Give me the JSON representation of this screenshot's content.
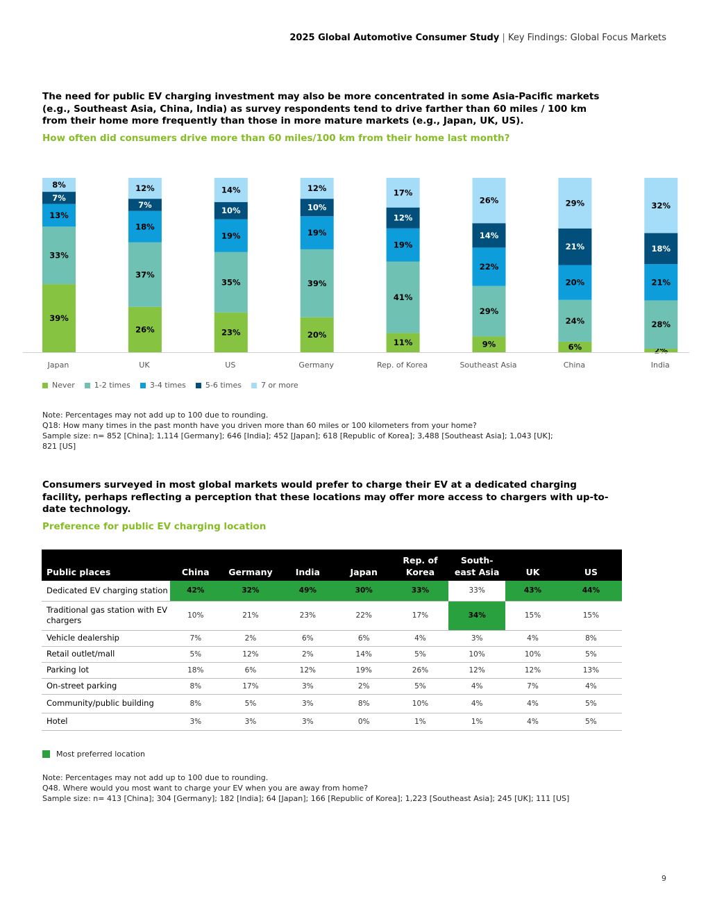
{
  "header": {
    "title": "2025 Global Automotive Consumer Study",
    "separator": "|",
    "subtitle": "Key Findings: Global Focus Markets"
  },
  "section1": {
    "title": "The need for public EV charging investment may also be more concentrated in some Asia-Pacific markets (e.g., Southeast Asia, China, India) as survey respondents tend to drive farther than 60 miles / 100 km from their home more frequently than those in more mature markets (e.g., Japan, UK, US).",
    "question": "How often did consumers drive more than 60 miles/100 km from their home last month?"
  },
  "chart_data": {
    "type": "bar",
    "stacked": true,
    "title": "How often did consumers drive more than 60 miles/100 km from their home last month?",
    "categories": [
      "Japan",
      "UK",
      "US",
      "Germany",
      "Rep. of Korea",
      "Southeast Asia",
      "China",
      "India"
    ],
    "series": [
      {
        "name": "Never",
        "color": "#86c341",
        "values": [
          39,
          26,
          23,
          20,
          11,
          9,
          6,
          2
        ]
      },
      {
        "name": "1-2 times",
        "color": "#6fc2b3",
        "values": [
          33,
          37,
          35,
          39,
          41,
          29,
          24,
          28
        ]
      },
      {
        "name": "3-4 times",
        "color": "#0d9ddb",
        "values": [
          13,
          18,
          19,
          19,
          19,
          22,
          20,
          21
        ]
      },
      {
        "name": "5-6 times",
        "color": "#024f7c",
        "values": [
          7,
          7,
          10,
          10,
          12,
          14,
          21,
          18
        ]
      },
      {
        "name": "7 or more",
        "color": "#a5dcf7",
        "values": [
          8,
          12,
          14,
          12,
          17,
          26,
          29,
          32
        ]
      }
    ],
    "value_suffix": "%",
    "legend_position": "bottom-left"
  },
  "note1": {
    "line1": "Note: Percentages may not add up to 100 due to rounding.",
    "line2": "Q18: How many times in the past month have you driven more than 60 miles or 100 kilometers from your home?",
    "line3": "Sample size: n= 852 [China]; 1,114 [Germany]; 646 [India]; 452 [Japan]; 618 [Republic of Korea]; 3,488 [Southeast Asia]; 1,043 [UK];",
    "line4": "821 [US]"
  },
  "section2": {
    "title": "Consumers surveyed in most global markets would prefer to charge their EV at a dedicated charging facility, perhaps reflecting a perception that these locations may offer more access to chargers with up-to-date technology.",
    "subtitle": "Preference for public EV charging location"
  },
  "table": {
    "corner_label": "Public places",
    "columns": [
      "China",
      "Germany",
      "India",
      "Japan",
      "Rep. of",
      "South-",
      "UK",
      "US"
    ],
    "columns_line2": [
      "",
      "",
      "",
      "",
      "Korea",
      "east Asia",
      "",
      ""
    ],
    "rows": [
      {
        "label": "Dedicated EV charging station",
        "values": [
          "42%",
          "32%",
          "49%",
          "30%",
          "33%",
          "33%",
          "43%",
          "44%"
        ],
        "highlight": [
          true,
          true,
          true,
          true,
          true,
          false,
          true,
          true
        ]
      },
      {
        "label": "Traditional gas station with EV chargers",
        "values": [
          "10%",
          "21%",
          "23%",
          "22%",
          "17%",
          "34%",
          "15%",
          "15%"
        ],
        "highlight": [
          false,
          false,
          false,
          false,
          false,
          true,
          false,
          false
        ]
      },
      {
        "label": "Vehicle dealership",
        "values": [
          "7%",
          "2%",
          "6%",
          "6%",
          "4%",
          "3%",
          "4%",
          "8%"
        ],
        "highlight": [
          false,
          false,
          false,
          false,
          false,
          false,
          false,
          false
        ]
      },
      {
        "label": "Retail outlet/mall",
        "values": [
          "5%",
          "12%",
          "2%",
          "14%",
          "5%",
          "10%",
          "10%",
          "5%"
        ],
        "highlight": [
          false,
          false,
          false,
          false,
          false,
          false,
          false,
          false
        ]
      },
      {
        "label": "Parking lot",
        "values": [
          "18%",
          "6%",
          "12%",
          "19%",
          "26%",
          "12%",
          "12%",
          "13%"
        ],
        "highlight": [
          false,
          false,
          false,
          false,
          false,
          false,
          false,
          false
        ]
      },
      {
        "label": "On-street parking",
        "values": [
          "8%",
          "17%",
          "3%",
          "2%",
          "5%",
          "4%",
          "7%",
          "4%"
        ],
        "highlight": [
          false,
          false,
          false,
          false,
          false,
          false,
          false,
          false
        ]
      },
      {
        "label": "Community/public building",
        "values": [
          "8%",
          "5%",
          "3%",
          "8%",
          "10%",
          "4%",
          "4%",
          "5%"
        ],
        "highlight": [
          false,
          false,
          false,
          false,
          false,
          false,
          false,
          false
        ]
      },
      {
        "label": "Hotel",
        "values": [
          "3%",
          "3%",
          "3%",
          "0%",
          "1%",
          "1%",
          "4%",
          "5%"
        ],
        "highlight": [
          false,
          false,
          false,
          false,
          false,
          false,
          false,
          false
        ]
      }
    ],
    "highlight_color": "#2aa13f",
    "key_label": "Most preferred location"
  },
  "note2": {
    "line1": "Note: Percentages may not add up to 100 due to rounding.",
    "line2": "Q48. Where would you most want to charge your EV when you are away from home?",
    "line3": "Sample size: n= 413 [China]; 304 [Germany]; 182 [India]; 64 [Japan]; 166 [Republic of Korea]; 1,223 [Southeast Asia]; 245 [UK]; 111 [US]"
  },
  "page_number": "9"
}
